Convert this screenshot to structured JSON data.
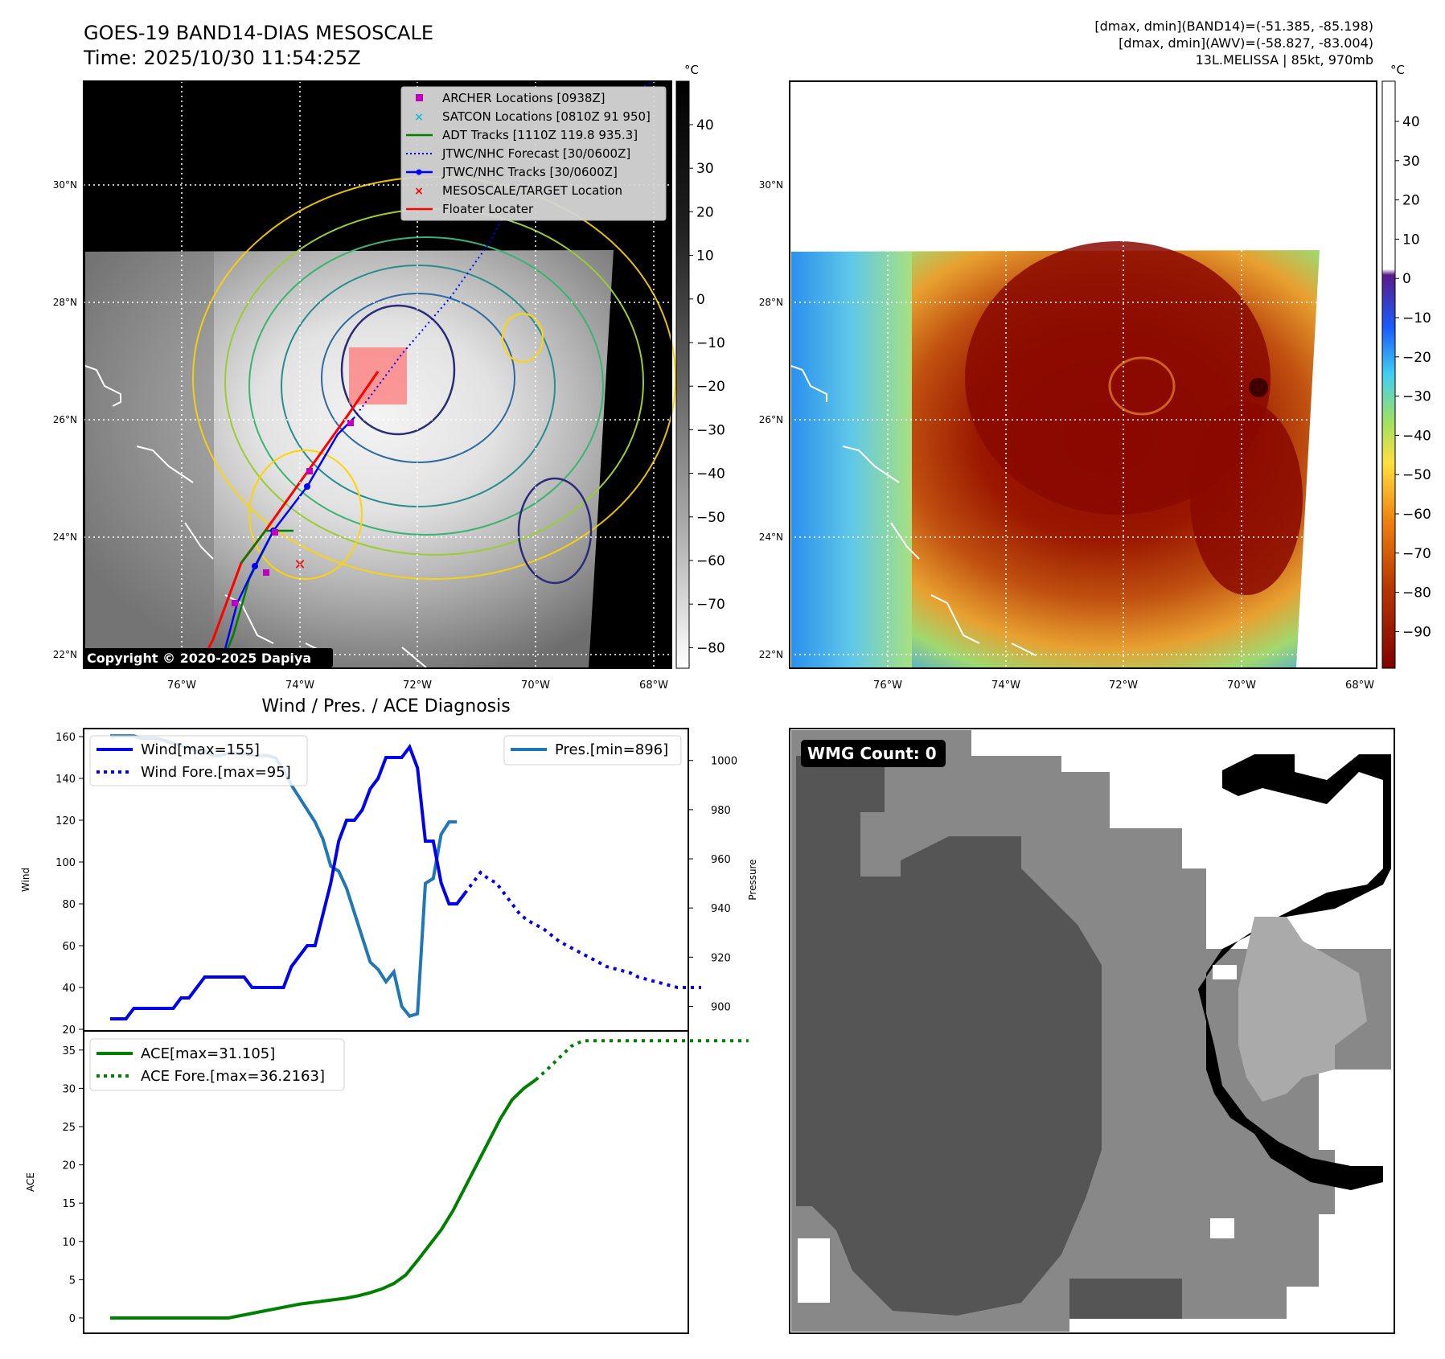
{
  "header": {
    "title_line1": "GOES-19 BAND14-DIAS MESOSCALE",
    "title_line2": "Time: 2025/10/30 11:54:25Z",
    "info_line1": "[dmax, dmin](BAND14)=(-51.385, -85.198)",
    "info_line2": "[dmax, dmin](AWV)=(-58.827, -83.004)",
    "info_line3": "13L.MELISSA | 85kt, 970mb"
  },
  "maps": {
    "lon_labels": [
      "76°W",
      "74°W",
      "72°W",
      "70°W",
      "68°W"
    ],
    "lat_labels": [
      "30°N",
      "28°N",
      "26°N",
      "24°N",
      "22°N"
    ],
    "copyright": "Copyright © 2020-2025 Dapiya",
    "colorbar_unit": "°C",
    "colorbar1_ticks": [
      "40",
      "30",
      "20",
      "10",
      "0",
      "−10",
      "−20",
      "−30",
      "−40",
      "−50",
      "−60",
      "−70",
      "−80"
    ],
    "colorbar2_ticks": [
      "40",
      "30",
      "20",
      "10",
      "0",
      "−10",
      "−20",
      "−30",
      "−40",
      "−50",
      "−60",
      "−70",
      "−80",
      "−90"
    ],
    "legend": [
      {
        "label": "ARCHER Locations [0938Z]",
        "color": "#c000c0",
        "kind": "square"
      },
      {
        "label": "SATCON Locations [0810Z 91 950]",
        "color": "#17becf",
        "kind": "x"
      },
      {
        "label": "ADT Tracks [1110Z 119.8 935.3]",
        "color": "#008000",
        "kind": "line"
      },
      {
        "label": "JTWC/NHC Forecast [30/0600Z]",
        "color": "#0000ff",
        "kind": "dotted"
      },
      {
        "label": "JTWC/NHC Tracks [30/0600Z]",
        "color": "#0000ff",
        "kind": "line-dot"
      },
      {
        "label": "MESOSCALE/TARGET Location",
        "color": "#ff0000",
        "kind": "x"
      },
      {
        "label": "Floater Locater",
        "color": "#ff0000",
        "kind": "line"
      }
    ]
  },
  "wmg": {
    "label": "WMG Count: 0"
  },
  "chart_data": [
    {
      "type": "line",
      "title": "Wind / Pres. / ACE Diagnosis",
      "ylabel": "Wind",
      "y2label": "Pressure",
      "ylim": [
        20,
        160
      ],
      "y2lim": [
        890,
        1013
      ],
      "yticks": [
        "160",
        "140",
        "120",
        "100",
        "80",
        "60",
        "40",
        "20"
      ],
      "y2ticks": [
        "1000",
        "980",
        "960",
        "940",
        "920",
        "900"
      ],
      "legend_left": [
        "Wind[max=155]",
        "Wind Fore.[max=95]"
      ],
      "legend_right": [
        "Pres.[min=896]"
      ],
      "series": [
        {
          "name": "Wind[max=155]",
          "color": "#0000ee",
          "style": "solid",
          "axis": "left",
          "values": [
            25,
            25,
            25,
            30,
            30,
            30,
            30,
            30,
            30,
            35,
            35,
            40,
            45,
            45,
            45,
            45,
            45,
            45,
            40,
            40,
            40,
            40,
            40,
            50,
            55,
            60,
            60,
            75,
            90,
            110,
            120,
            120,
            125,
            135,
            140,
            150,
            150,
            150,
            155,
            145,
            110,
            110,
            90,
            80,
            80,
            85
          ]
        },
        {
          "name": "Wind Fore.[max=95]",
          "color": "#0000ee",
          "style": "dotted",
          "axis": "left",
          "values": [
            85,
            90,
            95,
            92,
            90,
            85,
            80,
            75,
            72,
            70,
            68,
            65,
            62,
            60,
            58,
            56,
            54,
            52,
            50,
            49,
            48,
            47,
            45,
            44,
            43,
            42,
            41,
            40,
            40,
            40,
            40
          ]
        },
        {
          "name": "Pres.[min=896]",
          "color": "#1f77b4",
          "style": "solid",
          "axis": "right",
          "values": [
            1010,
            1010,
            1010,
            1010,
            1009,
            1009,
            1009,
            1008,
            1007,
            1006,
            1005,
            1004,
            1004,
            1002,
            1002,
            1003,
            1003,
            1003,
            1002,
            1002,
            1002,
            1001,
            996,
            990,
            985,
            980,
            975,
            968,
            957,
            955,
            948,
            938,
            928,
            918,
            915,
            910,
            914,
            900,
            896,
            897,
            950,
            952,
            970,
            975,
            975
          ]
        }
      ]
    },
    {
      "type": "line",
      "ylabel": "ACE",
      "ylim": [
        -2,
        37.5
      ],
      "yticks": [
        "35",
        "30",
        "25",
        "20",
        "15",
        "10",
        "5",
        "0"
      ],
      "legend": [
        "ACE[max=31.105]",
        "ACE Fore.[max=36.2163]"
      ],
      "series": [
        {
          "name": "ACE[max=31.105]",
          "color": "#008000",
          "style": "solid",
          "values": [
            0,
            0,
            0,
            0,
            0,
            0,
            0,
            0,
            0,
            0,
            0,
            0.3,
            0.6,
            0.9,
            1.2,
            1.5,
            1.8,
            2.0,
            2.2,
            2.4,
            2.6,
            2.9,
            3.3,
            3.8,
            4.5,
            5.6,
            7.5,
            9.5,
            11.5,
            14,
            17,
            20,
            23,
            26,
            28.5,
            30,
            31.105
          ]
        },
        {
          "name": "ACE Fore.[max=36.2163]",
          "color": "#008000",
          "style": "dotted",
          "values": [
            31.105,
            32.5,
            34,
            35.5,
            36.2163,
            36.2163,
            36.2163,
            36.2163,
            36.2163,
            36.2163,
            36.2163,
            36.2163,
            36.2163,
            36.2163,
            36.2163,
            36.2163,
            36.2163,
            36.2163,
            36.2163
          ]
        }
      ]
    }
  ]
}
